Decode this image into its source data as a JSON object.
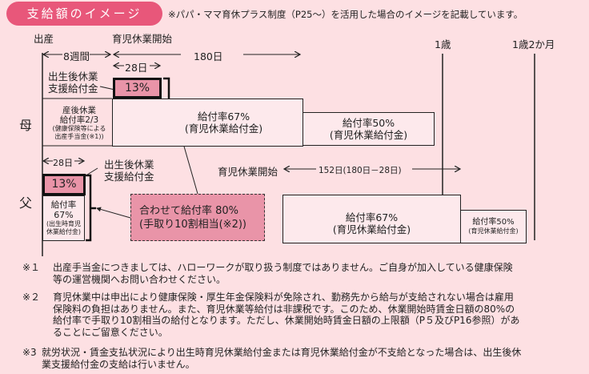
{
  "header": {
    "title": "支給額のイメージ",
    "note": "※パパ・ママ育休プラス制度（P25～）を活用した場合のイメージを記載しています。"
  },
  "timeline": {
    "birth": "出産",
    "leave_start": "育児休業開始",
    "age1": "1歳",
    "age1_2m": "1歳2か月",
    "weeks8": "8週間",
    "days180": "180日",
    "days28": "28日",
    "days28_father": "28日",
    "days152": "152日(180日－28日)",
    "leave_start_father": "育児休業開始"
  },
  "mother": {
    "label": "母",
    "support_label_1": "出生後休業",
    "support_label_2": "支援給付金",
    "support_rate": "13%",
    "maternity": {
      "l1": "産後休業",
      "l2": "給付率2/3",
      "l3": "(健康保険等による",
      "l4": "出産手当金(※1))"
    },
    "rate67": {
      "l1": "給付率67%",
      "l2": "(育児休業給付金)"
    },
    "rate50": {
      "l1": "給付率50%",
      "l2": "(育児休業給付金)"
    }
  },
  "father": {
    "label": "父",
    "support_label_1": "出生後休業",
    "support_label_2": "支援給付金",
    "support_rate": "13%",
    "birth_leave": {
      "l1": "給付率",
      "l2": "67%",
      "l3": "(出生時育児",
      "l4": "休業給付金)"
    },
    "rate67": {
      "l1": "給付率67%",
      "l2": "(育児休業給付金)"
    },
    "rate50": {
      "l1": "給付率50%",
      "l2": "(育児休業給付金)"
    }
  },
  "combined": {
    "l1": "合わせて給付率 80%",
    "l2": "(手取り10割相当(※2))"
  },
  "notes": [
    {
      "mark": "※１",
      "lines": [
        "出産手当金につきましては、ハローワークが取り扱う制度ではありません。ご自身が加入している健康保険",
        "等の運営機関へお問い合わせください。"
      ]
    },
    {
      "mark": "※２",
      "lines": [
        "育児休業中は申出により健康保険・厚生年金保険料が免除され、勤務先から給与が支給されない場合は雇用",
        "保険料の負担はありません。また、育児休業等給付は非課税です。このため、休業開始時賃金日額の80%の",
        "給付率で手取り10割相当の給付となります。ただし、休業開始時賃金日額の上限額（P５及びP16参照）があ",
        "ることにご留意ください。"
      ]
    },
    {
      "mark": "※3",
      "lines": [
        "就労状況・賃金支払状況により出生時育児休業給付金または育児休業給付金が不支給となった場合は、出生後休",
        "業支援給付金の支給は行いません。"
      ]
    }
  ],
  "colors": {
    "accent": "#e8577a",
    "highlight": "#e994a8",
    "background": "#fde0e3",
    "box": "#fde9ec"
  }
}
